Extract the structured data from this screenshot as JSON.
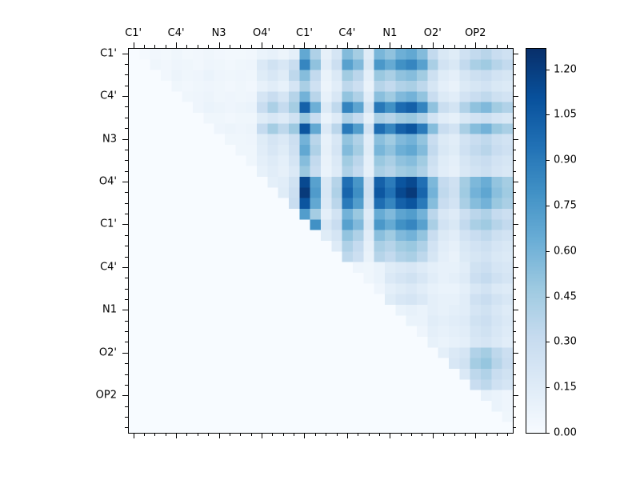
{
  "figure": {
    "background": "#ffffff"
  },
  "colorbar": {
    "vmin": 0,
    "vmax": 1.27,
    "tick_values": [
      0.0,
      0.15,
      0.3,
      0.45,
      0.6,
      0.75,
      0.9,
      1.05,
      1.2
    ],
    "tick_labels": [
      "0.00",
      "0.15",
      "0.30",
      "0.45",
      "0.60",
      "0.75",
      "0.90",
      "1.05",
      "1.20"
    ]
  },
  "chart_data": {
    "type": "heatmap",
    "n": 36,
    "group_size": 4,
    "x_tick_labels": [
      "C1'",
      "C4'",
      "N3",
      "O4'",
      "C1'",
      "C4'",
      "N1",
      "O2'",
      "OP2"
    ],
    "y_tick_labels": [
      "C1'",
      "C4'",
      "N3",
      "O4'",
      "C1'",
      "C4'",
      "N1",
      "O2'",
      "OP2"
    ],
    "vmin": 0,
    "vmax": 1.27,
    "colormap": {
      "name": "Blues",
      "anchors": [
        "#f7fbff",
        "#deebf7",
        "#c6dbef",
        "#9ecae1",
        "#6baed6",
        "#4292c6",
        "#2171b5",
        "#08519c",
        "#08306b"
      ]
    },
    "matrix": [
      [
        0,
        0.02,
        0.04,
        0.03,
        0.05,
        0.03,
        0.04,
        0.05,
        0.04,
        0.03,
        0.03,
        0.04,
        0.08,
        0.1,
        0.07,
        0.12,
        0.67,
        0.41,
        0.11,
        0.22,
        0.56,
        0.45,
        0.15,
        0.59,
        0.52,
        0.63,
        0.67,
        0.56,
        0.33,
        0.19,
        0.15,
        0.26,
        0.33,
        0.37,
        0.3,
        0.26
      ],
      [
        0,
        0,
        0.05,
        0.04,
        0.06,
        0.05,
        0.04,
        0.06,
        0.05,
        0.04,
        0.05,
        0.06,
        0.18,
        0.25,
        0.2,
        0.3,
        0.85,
        0.52,
        0.14,
        0.28,
        0.71,
        0.57,
        0.19,
        0.76,
        0.66,
        0.8,
        0.85,
        0.71,
        0.43,
        0.24,
        0.19,
        0.33,
        0.43,
        0.47,
        0.38,
        0.33
      ],
      [
        0,
        0,
        0,
        0.04,
        0.07,
        0.05,
        0.06,
        0.08,
        0.06,
        0.05,
        0.06,
        0.05,
        0.15,
        0.2,
        0.15,
        0.35,
        0.55,
        0.33,
        0.09,
        0.18,
        0.46,
        0.36,
        0.12,
        0.49,
        0.43,
        0.52,
        0.55,
        0.46,
        0.27,
        0.15,
        0.12,
        0.21,
        0.27,
        0.3,
        0.24,
        0.21
      ],
      [
        0,
        0,
        0,
        0,
        0.05,
        0.04,
        0.05,
        0.06,
        0.05,
        0.04,
        0.05,
        0.04,
        0.1,
        0.14,
        0.1,
        0.22,
        0.43,
        0.26,
        0.07,
        0.14,
        0.35,
        0.28,
        0.09,
        0.38,
        0.33,
        0.4,
        0.43,
        0.35,
        0.21,
        0.12,
        0.09,
        0.17,
        0.21,
        0.24,
        0.19,
        0.17
      ],
      [
        0,
        0,
        0,
        0,
        0,
        0.05,
        0.06,
        0.07,
        0.05,
        0.06,
        0.05,
        0.06,
        0.22,
        0.3,
        0.22,
        0.38,
        0.61,
        0.37,
        0.1,
        0.2,
        0.51,
        0.41,
        0.14,
        0.54,
        0.47,
        0.57,
        0.61,
        0.51,
        0.3,
        0.17,
        0.14,
        0.24,
        0.3,
        0.34,
        0.27,
        0.24
      ],
      [
        0,
        0,
        0,
        0,
        0,
        0,
        0.06,
        0.08,
        0.07,
        0.06,
        0.07,
        0.08,
        0.3,
        0.42,
        0.32,
        0.45,
        1.03,
        0.63,
        0.17,
        0.34,
        0.86,
        0.69,
        0.23,
        0.92,
        0.8,
        0.98,
        1.03,
        0.86,
        0.52,
        0.29,
        0.23,
        0.4,
        0.52,
        0.57,
        0.46,
        0.4
      ],
      [
        0,
        0,
        0,
        0,
        0,
        0,
        0,
        0.05,
        0.05,
        0.04,
        0.05,
        0.05,
        0.15,
        0.2,
        0.16,
        0.25,
        0.49,
        0.3,
        0.08,
        0.16,
        0.41,
        0.32,
        0.11,
        0.43,
        0.38,
        0.46,
        0.49,
        0.41,
        0.24,
        0.14,
        0.11,
        0.19,
        0.24,
        0.27,
        0.22,
        0.19
      ],
      [
        0,
        0,
        0,
        0,
        0,
        0,
        0,
        0,
        0.06,
        0.07,
        0.06,
        0.07,
        0.32,
        0.45,
        0.35,
        0.48,
        1.09,
        0.67,
        0.18,
        0.36,
        0.91,
        0.73,
        0.24,
        0.97,
        0.85,
        1.03,
        1.09,
        0.91,
        0.55,
        0.3,
        0.24,
        0.43,
        0.55,
        0.61,
        0.49,
        0.43
      ],
      [
        0,
        0,
        0,
        0,
        0,
        0,
        0,
        0,
        0,
        0.05,
        0.05,
        0.06,
        0.15,
        0.22,
        0.18,
        0.28,
        0.61,
        0.37,
        0.1,
        0.2,
        0.51,
        0.41,
        0.14,
        0.54,
        0.47,
        0.57,
        0.61,
        0.51,
        0.3,
        0.17,
        0.14,
        0.24,
        0.3,
        0.34,
        0.27,
        0.24
      ],
      [
        0,
        0,
        0,
        0,
        0,
        0,
        0,
        0,
        0,
        0,
        0.05,
        0.05,
        0.14,
        0.2,
        0.15,
        0.26,
        0.67,
        0.41,
        0.11,
        0.22,
        0.56,
        0.45,
        0.15,
        0.59,
        0.52,
        0.63,
        0.67,
        0.56,
        0.33,
        0.19,
        0.15,
        0.26,
        0.33,
        0.37,
        0.3,
        0.26
      ],
      [
        0,
        0,
        0,
        0,
        0,
        0,
        0,
        0,
        0,
        0,
        0,
        0.05,
        0.12,
        0.16,
        0.12,
        0.22,
        0.55,
        0.33,
        0.09,
        0.18,
        0.46,
        0.36,
        0.12,
        0.49,
        0.43,
        0.52,
        0.55,
        0.46,
        0.27,
        0.15,
        0.12,
        0.21,
        0.27,
        0.3,
        0.24,
        0.21
      ],
      [
        0,
        0,
        0,
        0,
        0,
        0,
        0,
        0,
        0,
        0,
        0,
        0,
        0.1,
        0.14,
        0.11,
        0.18,
        0.49,
        0.3,
        0.08,
        0.16,
        0.41,
        0.32,
        0.11,
        0.43,
        0.38,
        0.46,
        0.49,
        0.41,
        0.24,
        0.14,
        0.11,
        0.19,
        0.24,
        0.27,
        0.22,
        0.19
      ],
      [
        0,
        0,
        0,
        0,
        0,
        0,
        0,
        0,
        0,
        0,
        0,
        0,
        0,
        0.12,
        0.14,
        0.25,
        1.15,
        0.71,
        0.19,
        0.38,
        0.96,
        0.77,
        0.26,
        1.03,
        0.9,
        1.09,
        1.15,
        0.96,
        0.58,
        0.32,
        0.26,
        0.45,
        0.58,
        0.64,
        0.51,
        0.45
      ],
      [
        0,
        0,
        0,
        0,
        0,
        0,
        0,
        0,
        0,
        0,
        0,
        0,
        0,
        0,
        0.15,
        0.28,
        1.22,
        0.74,
        0.2,
        0.41,
        1.01,
        0.81,
        0.27,
        1.08,
        0.95,
        1.15,
        1.22,
        1.01,
        0.61,
        0.34,
        0.27,
        0.47,
        0.61,
        0.68,
        0.54,
        0.47
      ],
      [
        0,
        0,
        0,
        0,
        0,
        0,
        0,
        0,
        0,
        0,
        0,
        0,
        0,
        0,
        0,
        0.3,
        1.09,
        0.67,
        0.18,
        0.36,
        0.91,
        0.73,
        0.24,
        0.97,
        0.85,
        1.03,
        1.09,
        0.91,
        0.55,
        0.3,
        0.24,
        0.43,
        0.55,
        0.61,
        0.49,
        0.43
      ],
      [
        0,
        0,
        0,
        0,
        0,
        0,
        0,
        0,
        0,
        0,
        0,
        0,
        0,
        0,
        0,
        0,
        0.73,
        0.45,
        0.12,
        0.24,
        0.61,
        0.49,
        0.16,
        0.65,
        0.57,
        0.69,
        0.73,
        0.61,
        0.36,
        0.2,
        0.16,
        0.28,
        0.36,
        0.41,
        0.32,
        0.28
      ],
      [
        0,
        0,
        0,
        0,
        0,
        0,
        0,
        0,
        0,
        0,
        0,
        0,
        0,
        0,
        0,
        0,
        0,
        0.8,
        0.2,
        0.3,
        0.71,
        0.57,
        0.19,
        0.76,
        0.66,
        0.8,
        0.85,
        0.71,
        0.43,
        0.24,
        0.19,
        0.33,
        0.43,
        0.47,
        0.38,
        0.33
      ],
      [
        0,
        0,
        0,
        0,
        0,
        0,
        0,
        0,
        0,
        0,
        0,
        0,
        0,
        0,
        0,
        0,
        0,
        0,
        0.15,
        0.22,
        0.51,
        0.41,
        0.14,
        0.54,
        0.47,
        0.57,
        0.61,
        0.51,
        0.3,
        0.17,
        0.14,
        0.24,
        0.3,
        0.34,
        0.27,
        0.24
      ],
      [
        0,
        0,
        0,
        0,
        0,
        0,
        0,
        0,
        0,
        0,
        0,
        0,
        0,
        0,
        0,
        0,
        0,
        0,
        0,
        0.16,
        0.41,
        0.32,
        0.11,
        0.43,
        0.38,
        0.46,
        0.49,
        0.41,
        0.24,
        0.14,
        0.11,
        0.19,
        0.24,
        0.27,
        0.22,
        0.19
      ],
      [
        0,
        0,
        0,
        0,
        0,
        0,
        0,
        0,
        0,
        0,
        0,
        0,
        0,
        0,
        0,
        0,
        0,
        0,
        0,
        0,
        0.35,
        0.28,
        0.09,
        0.38,
        0.33,
        0.4,
        0.43,
        0.35,
        0.21,
        0.12,
        0.09,
        0.17,
        0.21,
        0.24,
        0.19,
        0.17
      ],
      [
        0,
        0,
        0,
        0,
        0,
        0,
        0,
        0,
        0,
        0,
        0,
        0,
        0,
        0,
        0,
        0,
        0,
        0,
        0,
        0,
        0,
        0.06,
        0.05,
        0.08,
        0.15,
        0.18,
        0.2,
        0.16,
        0.12,
        0.1,
        0.1,
        0.14,
        0.25,
        0.28,
        0.22,
        0.2
      ],
      [
        0,
        0,
        0,
        0,
        0,
        0,
        0,
        0,
        0,
        0,
        0,
        0,
        0,
        0,
        0,
        0,
        0,
        0,
        0,
        0,
        0,
        0,
        0.05,
        0.08,
        0.18,
        0.22,
        0.25,
        0.2,
        0.14,
        0.1,
        0.12,
        0.16,
        0.28,
        0.32,
        0.26,
        0.22
      ],
      [
        0,
        0,
        0,
        0,
        0,
        0,
        0,
        0,
        0,
        0,
        0,
        0,
        0,
        0,
        0,
        0,
        0,
        0,
        0,
        0,
        0,
        0,
        0,
        0.06,
        0.12,
        0.15,
        0.18,
        0.14,
        0.1,
        0.08,
        0.08,
        0.12,
        0.2,
        0.24,
        0.18,
        0.16
      ],
      [
        0,
        0,
        0,
        0,
        0,
        0,
        0,
        0,
        0,
        0,
        0,
        0,
        0,
        0,
        0,
        0,
        0,
        0,
        0,
        0,
        0,
        0,
        0,
        0,
        0.15,
        0.2,
        0.22,
        0.18,
        0.12,
        0.1,
        0.1,
        0.14,
        0.26,
        0.3,
        0.24,
        0.2
      ],
      [
        0,
        0,
        0,
        0,
        0,
        0,
        0,
        0,
        0,
        0,
        0,
        0,
        0,
        0,
        0,
        0,
        0,
        0,
        0,
        0,
        0,
        0,
        0,
        0,
        0,
        0.08,
        0.1,
        0.08,
        0.12,
        0.1,
        0.12,
        0.14,
        0.22,
        0.25,
        0.2,
        0.16
      ],
      [
        0,
        0,
        0,
        0,
        0,
        0,
        0,
        0,
        0,
        0,
        0,
        0,
        0,
        0,
        0,
        0,
        0,
        0,
        0,
        0,
        0,
        0,
        0,
        0,
        0,
        0,
        0.08,
        0.08,
        0.14,
        0.12,
        0.14,
        0.16,
        0.25,
        0.28,
        0.22,
        0.18
      ],
      [
        0,
        0,
        0,
        0,
        0,
        0,
        0,
        0,
        0,
        0,
        0,
        0,
        0,
        0,
        0,
        0,
        0,
        0,
        0,
        0,
        0,
        0,
        0,
        0,
        0,
        0,
        0,
        0.06,
        0.12,
        0.1,
        0.12,
        0.14,
        0.22,
        0.25,
        0.2,
        0.16
      ],
      [
        0,
        0,
        0,
        0,
        0,
        0,
        0,
        0,
        0,
        0,
        0,
        0,
        0,
        0,
        0,
        0,
        0,
        0,
        0,
        0,
        0,
        0,
        0,
        0,
        0,
        0,
        0,
        0,
        0.1,
        0.08,
        0.1,
        0.12,
        0.2,
        0.22,
        0.18,
        0.14
      ],
      [
        0,
        0,
        0,
        0,
        0,
        0,
        0,
        0,
        0,
        0,
        0,
        0,
        0,
        0,
        0,
        0,
        0,
        0,
        0,
        0,
        0,
        0,
        0,
        0,
        0,
        0,
        0,
        0,
        0,
        0.12,
        0.18,
        0.22,
        0.4,
        0.45,
        0.35,
        0.28
      ],
      [
        0,
        0,
        0,
        0,
        0,
        0,
        0,
        0,
        0,
        0,
        0,
        0,
        0,
        0,
        0,
        0,
        0,
        0,
        0,
        0,
        0,
        0,
        0,
        0,
        0,
        0,
        0,
        0,
        0,
        0,
        0.2,
        0.25,
        0.45,
        0.5,
        0.38,
        0.3
      ],
      [
        0,
        0,
        0,
        0,
        0,
        0,
        0,
        0,
        0,
        0,
        0,
        0,
        0,
        0,
        0,
        0,
        0,
        0,
        0,
        0,
        0,
        0,
        0,
        0,
        0,
        0,
        0,
        0,
        0,
        0,
        0,
        0.18,
        0.35,
        0.4,
        0.3,
        0.25
      ],
      [
        0,
        0,
        0,
        0,
        0,
        0,
        0,
        0,
        0,
        0,
        0,
        0,
        0,
        0,
        0,
        0,
        0,
        0,
        0,
        0,
        0,
        0,
        0,
        0,
        0,
        0,
        0,
        0,
        0,
        0,
        0,
        0,
        0.3,
        0.35,
        0.26,
        0.22
      ],
      [
        0,
        0,
        0,
        0,
        0,
        0,
        0,
        0,
        0,
        0,
        0,
        0,
        0,
        0,
        0,
        0,
        0,
        0,
        0,
        0,
        0,
        0,
        0,
        0,
        0,
        0,
        0,
        0,
        0,
        0,
        0,
        0,
        0,
        0.1,
        0.08,
        0.06
      ],
      [
        0,
        0,
        0,
        0,
        0,
        0,
        0,
        0,
        0,
        0,
        0,
        0,
        0,
        0,
        0,
        0,
        0,
        0,
        0,
        0,
        0,
        0,
        0,
        0,
        0,
        0,
        0,
        0,
        0,
        0,
        0,
        0,
        0,
        0,
        0.08,
        0.06
      ],
      [
        0,
        0,
        0,
        0,
        0,
        0,
        0,
        0,
        0,
        0,
        0,
        0,
        0,
        0,
        0,
        0,
        0,
        0,
        0,
        0,
        0,
        0,
        0,
        0,
        0,
        0,
        0,
        0,
        0,
        0,
        0,
        0,
        0,
        0,
        0,
        0.05
      ],
      [
        0,
        0,
        0,
        0,
        0,
        0,
        0,
        0,
        0,
        0,
        0,
        0,
        0,
        0,
        0,
        0,
        0,
        0,
        0,
        0,
        0,
        0,
        0,
        0,
        0,
        0,
        0,
        0,
        0,
        0,
        0,
        0,
        0,
        0,
        0,
        0
      ]
    ]
  }
}
